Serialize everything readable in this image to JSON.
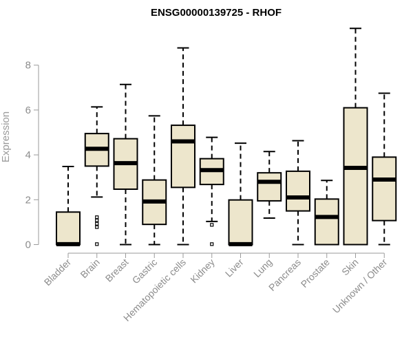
{
  "chart_data": {
    "type": "boxplot",
    "title": "ENSG00000139725 - RHOF",
    "ylabel": "Expression",
    "xlabel": "",
    "ylim": [
      0,
      9.8
    ],
    "yticks": [
      0,
      2,
      4,
      6,
      8
    ],
    "box_fill": "#ede6cc",
    "box_stroke": "#000000",
    "categories": [
      "Bladder",
      "Brain",
      "Breast",
      "Gastric",
      "Hematopoietic cells",
      "Kidney",
      "Liver",
      "Lung",
      "Pancreas",
      "Prostate",
      "Skin",
      "Unknown / Other"
    ],
    "boxes": [
      {
        "whisker_low": 0,
        "q1": 0,
        "median": 0.02,
        "q3": 1.45,
        "whisker_high": 3.48,
        "outliers": []
      },
      {
        "whisker_low": 2.12,
        "q1": 3.5,
        "median": 4.27,
        "q3": 4.95,
        "whisker_high": 6.14,
        "outliers": [
          1.22,
          1.08,
          0.93,
          0.78,
          0.02
        ]
      },
      {
        "whisker_low": 0,
        "q1": 2.47,
        "median": 3.63,
        "q3": 4.72,
        "whisker_high": 7.14,
        "outliers": []
      },
      {
        "whisker_low": 0,
        "q1": 0.9,
        "median": 1.92,
        "q3": 2.88,
        "whisker_high": 5.74,
        "outliers": []
      },
      {
        "whisker_low": 0,
        "q1": 2.55,
        "median": 4.6,
        "q3": 5.32,
        "whisker_high": 8.77,
        "outliers": []
      },
      {
        "whisker_low": 1.03,
        "q1": 2.68,
        "median": 3.32,
        "q3": 3.83,
        "whisker_high": 4.78,
        "outliers": [
          0.88,
          0.02
        ]
      },
      {
        "whisker_low": 0,
        "q1": 0,
        "median": 0.02,
        "q3": 1.99,
        "whisker_high": 4.52,
        "outliers": []
      },
      {
        "whisker_low": 1.18,
        "q1": 1.95,
        "median": 2.8,
        "q3": 3.2,
        "whisker_high": 4.15,
        "outliers": []
      },
      {
        "whisker_low": 0,
        "q1": 1.5,
        "median": 2.1,
        "q3": 3.27,
        "whisker_high": 4.63,
        "outliers": []
      },
      {
        "whisker_low": 0,
        "q1": 0,
        "median": 1.23,
        "q3": 2.03,
        "whisker_high": 2.86,
        "outliers": []
      },
      {
        "whisker_low": 0,
        "q1": 0,
        "median": 3.42,
        "q3": 6.1,
        "whisker_high": 9.64,
        "outliers": []
      },
      {
        "whisker_low": 0,
        "q1": 1.07,
        "median": 2.9,
        "q3": 3.9,
        "whisker_high": 6.75,
        "outliers": []
      }
    ]
  }
}
